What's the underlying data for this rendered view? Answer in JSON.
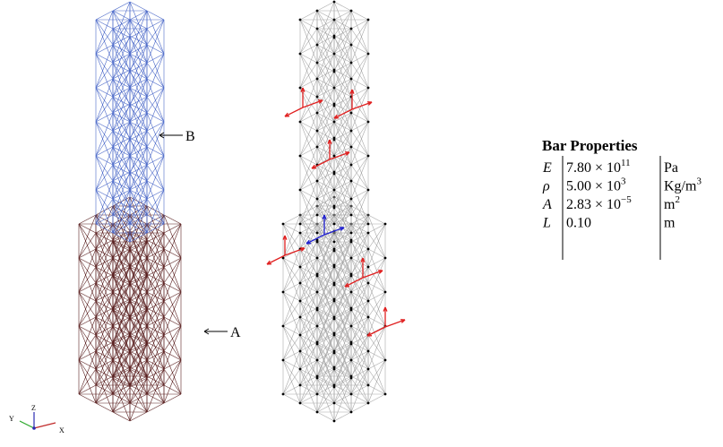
{
  "figure": {
    "labels": {
      "a": "A",
      "b": "B"
    },
    "axes": {
      "x": "X",
      "y": "Y",
      "z": "Z"
    }
  },
  "table": {
    "title": "Bar Properties",
    "rows": [
      {
        "symbol": "E",
        "value": "7.80 × 10",
        "value_sup": "11",
        "unit": "Pa"
      },
      {
        "symbol": "ρ",
        "value": "5.00 × 10",
        "value_sup": "3",
        "unit": "Kg/m",
        "unit_sup": "3"
      },
      {
        "symbol": "A",
        "value": "2.83 × 10",
        "value_sup": "−5",
        "unit": "m",
        "unit_sup": "2"
      },
      {
        "symbol": "L",
        "value": "0.10",
        "unit": "m"
      }
    ]
  }
}
